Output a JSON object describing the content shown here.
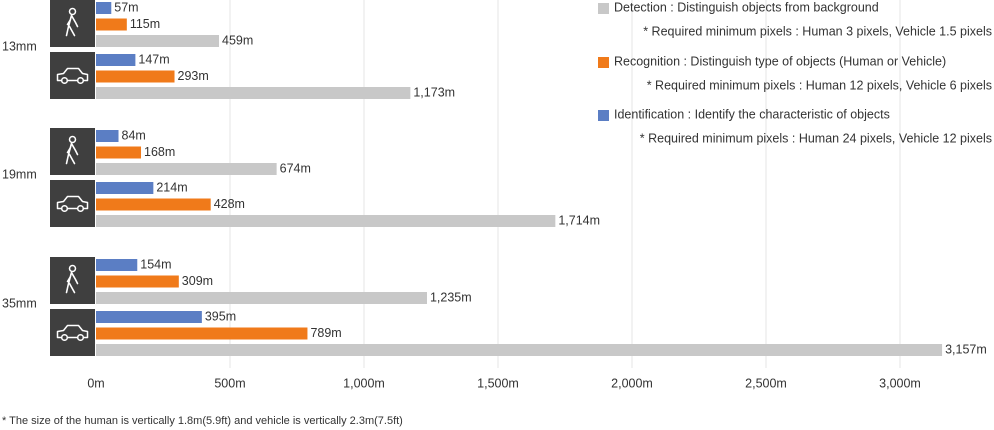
{
  "chart_data": {
    "type": "bar",
    "orientation": "horizontal",
    "lenses": [
      "13mm",
      "19mm",
      "35mm"
    ],
    "series": [
      {
        "name": "Identification : Identify the characteristic of objects",
        "note": "* Required minimum pixels : Human 24 pixels, Vehicle 12 pixels",
        "color": "#5b7ec4",
        "values": [
          57,
          147,
          84,
          214,
          154,
          395
        ],
        "value_labels": [
          "57m",
          "147m",
          "84m",
          "214m",
          "154m",
          "395m"
        ]
      },
      {
        "name": "Recognition : Distinguish type of objects (Human or Vehicle)",
        "note": "* Required minimum pixels : Human 12 pixels, Vehicle 6 pixels",
        "color": "#f07a1a",
        "values": [
          115,
          293,
          168,
          428,
          309,
          789
        ],
        "value_labels": [
          "115m",
          "293m",
          "168m",
          "428m",
          "309m",
          "789m"
        ]
      },
      {
        "name": "Detection : Distinguish objects from background",
        "note": "* Required minimum pixels : Human 3 pixels, Vehicle 1.5 pixels",
        "color": "#c8c8c8",
        "values": [
          459,
          1173,
          674,
          1714,
          1235,
          3157
        ],
        "value_labels": [
          "459m",
          "1,173m",
          "674m",
          "1,714m",
          "1,235m",
          "3,157m"
        ]
      }
    ],
    "xlim": [
      0,
      3000
    ],
    "xticks": [
      {
        "value": 0,
        "label": "0m"
      },
      {
        "value": 500,
        "label": "500m"
      },
      {
        "value": 1000,
        "label": "1,000m"
      },
      {
        "value": 1500,
        "label": "1,500m"
      },
      {
        "value": 2000,
        "label": "2,000m"
      },
      {
        "value": 2500,
        "label": "2,500m"
      },
      {
        "value": 3000,
        "label": "3,000m"
      }
    ],
    "grid": true,
    "footnote": "* The size of the human is vertically 1.8m(5.9ft) and vehicle is vertically 2.3m(7.5ft)"
  }
}
